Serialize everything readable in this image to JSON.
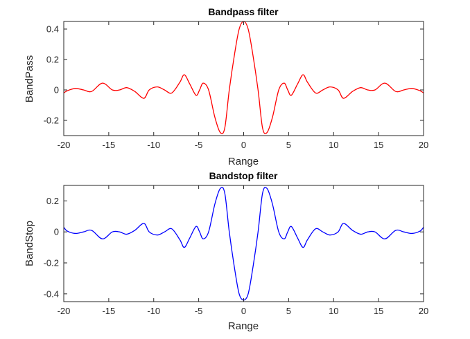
{
  "chart_data": [
    {
      "type": "line",
      "title": "Bandpass filter",
      "xlabel": "Range",
      "ylabel": "BandPass",
      "xlim": [
        -20,
        20
      ],
      "ylim": [
        -0.3,
        0.45
      ],
      "grid": false,
      "x_ticks": [
        -20,
        -15,
        -10,
        -5,
        0,
        5,
        10,
        15,
        20
      ],
      "x_tick_labels": [
        "-20",
        "-15",
        "-10",
        "-5",
        "0",
        "5",
        "10",
        "15",
        "20"
      ],
      "y_ticks": [
        -0.2,
        0,
        0.2,
        0.4
      ],
      "y_tick_labels": [
        "-0.2",
        "0",
        "0.2",
        "0.4"
      ],
      "color": "#ff0000",
      "series": [
        {
          "x": [
            -20,
            -19.6,
            -18.7,
            -17.8,
            -16.9,
            -15.7,
            -14.6,
            -13.8,
            -13,
            -12.1,
            -11.1,
            -10.5,
            -9.6,
            -8.8,
            -8,
            -7.1,
            -6.6,
            -6,
            -5.3,
            -4.9,
            -4.5,
            -3.9,
            -3.2,
            -2.6,
            -2.1,
            -1.6,
            -1,
            -0.5,
            0,
            0.5,
            1,
            1.6,
            2.1,
            2.6,
            3.2,
            3.9,
            4.5,
            4.9,
            5.3,
            6,
            6.6,
            7.1,
            8,
            8.8,
            9.6,
            10.5,
            11.1,
            12.1,
            13,
            13.8,
            14.6,
            15.7,
            16.9,
            17.8,
            18.7,
            19.6,
            20
          ],
          "y": [
            -0.02,
            -0.005,
            0.01,
            0.0,
            -0.01,
            0.045,
            0.0,
            0.0,
            0.015,
            -0.01,
            -0.055,
            0.0,
            0.02,
            0.0,
            -0.02,
            0.05,
            0.1,
            0.04,
            -0.035,
            0.0,
            0.045,
            0.0,
            -0.18,
            -0.28,
            -0.25,
            0.0,
            0.24,
            0.4,
            0.45,
            0.4,
            0.24,
            0.0,
            -0.25,
            -0.28,
            -0.18,
            0.0,
            0.045,
            0.0,
            -0.035,
            0.04,
            0.1,
            0.05,
            -0.02,
            0.0,
            0.02,
            0.0,
            -0.055,
            -0.01,
            0.015,
            0.0,
            0.0,
            0.045,
            -0.01,
            0.0,
            0.01,
            -0.005,
            -0.02
          ]
        }
      ]
    },
    {
      "type": "line",
      "title": "Bandstop filter",
      "xlabel": "Range",
      "ylabel": "BandStop",
      "xlim": [
        -20,
        20
      ],
      "ylim": [
        -0.45,
        0.3
      ],
      "grid": false,
      "x_ticks": [
        -20,
        -15,
        -10,
        -5,
        0,
        5,
        10,
        15,
        20
      ],
      "x_tick_labels": [
        "-20",
        "-15",
        "-10",
        "-5",
        "0",
        "5",
        "10",
        "15",
        "20"
      ],
      "y_ticks": [
        -0.4,
        -0.2,
        0,
        0.2
      ],
      "y_tick_labels": [
        "-0.4",
        "-0.2",
        "0",
        "0.2"
      ],
      "color": "#0000ff",
      "series": [
        {
          "x": [
            -20,
            -19.6,
            -18.7,
            -17.8,
            -16.9,
            -15.7,
            -14.6,
            -13.8,
            -13,
            -12.1,
            -11.1,
            -10.5,
            -9.6,
            -8.8,
            -8,
            -7.1,
            -6.6,
            -6,
            -5.3,
            -4.9,
            -4.5,
            -3.9,
            -3.2,
            -2.6,
            -2.1,
            -1.6,
            -1,
            -0.5,
            0,
            0.5,
            1,
            1.6,
            2.1,
            2.6,
            3.2,
            3.9,
            4.5,
            4.9,
            5.3,
            6,
            6.6,
            7.1,
            8,
            8.8,
            9.6,
            10.5,
            11.1,
            12.1,
            13,
            13.8,
            14.6,
            15.7,
            16.9,
            17.8,
            18.7,
            19.6,
            20
          ],
          "y": [
            0.03,
            0.005,
            -0.01,
            0.0,
            0.01,
            -0.045,
            0.0,
            0.0,
            -0.015,
            0.01,
            0.055,
            0.0,
            -0.02,
            0.0,
            0.02,
            -0.05,
            -0.1,
            -0.04,
            0.035,
            0.0,
            -0.045,
            0.0,
            0.18,
            0.28,
            0.25,
            0.0,
            -0.24,
            -0.4,
            -0.44,
            -0.4,
            -0.24,
            0.0,
            0.25,
            0.28,
            0.18,
            0.0,
            -0.045,
            0.0,
            0.035,
            -0.04,
            -0.1,
            -0.05,
            0.02,
            0.0,
            -0.02,
            0.0,
            0.055,
            0.01,
            -0.015,
            0.0,
            0.0,
            -0.045,
            0.01,
            0.0,
            -0.01,
            0.005,
            0.03
          ]
        }
      ]
    }
  ]
}
